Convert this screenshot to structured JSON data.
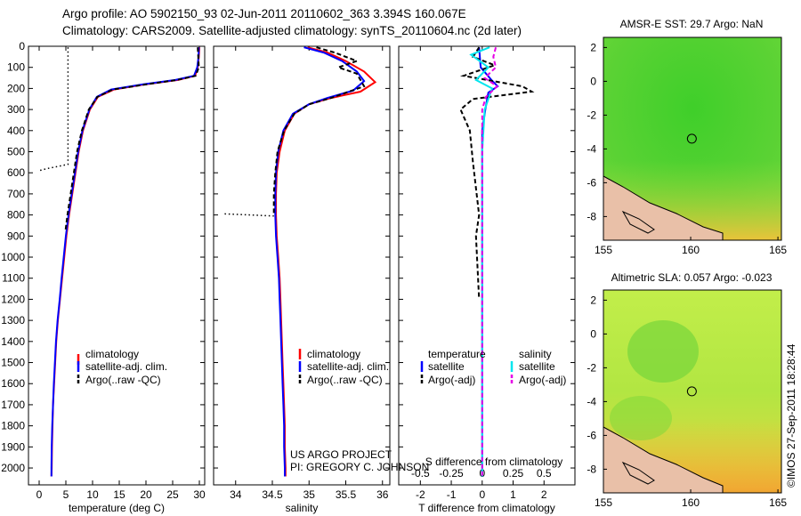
{
  "header": {
    "line1": "Argo profile: AO 5902150_93 02-Jun-2011 20110602_363 3.394S 160.067E",
    "line2": "Climatology: CARS2009. Satellite-adjusted climatology: synTS_20110604.nc (2d later)"
  },
  "watermark": "©IMOS 27-Sep-2011 18:28:44",
  "project": {
    "line1": "US ARGO PROJECT",
    "line2": "PI: GREGORY C. JOHNSON"
  },
  "colors": {
    "climatology": "#ff0000",
    "satellite": "#0000ff",
    "argo": "#000000",
    "sat_diff_S": "#00e5ee",
    "argo_adj_S": "#e600e6"
  },
  "chart_data": [
    {
      "type": "line",
      "id": "temperature",
      "xlabel": "temperature (deg C)",
      "ylabel": "",
      "xlim": [
        -2,
        31
      ],
      "ylim": [
        2080,
        0
      ],
      "y_reversed": true,
      "xticks": [
        0,
        5,
        10,
        15,
        20,
        25,
        30
      ],
      "yticks": [
        0,
        100,
        200,
        300,
        400,
        500,
        600,
        700,
        800,
        900,
        1000,
        1100,
        1200,
        1300,
        1400,
        1500,
        1600,
        1700,
        1800,
        1900,
        2000
      ],
      "legend": {
        "position": "bottom-center",
        "entries": [
          "climatology",
          "satellite-adj. clim.",
          "Argo(..raw -QC)"
        ]
      },
      "series": [
        {
          "name": "climatology",
          "points": [
            [
              30.0,
              5
            ],
            [
              29.9,
              50
            ],
            [
              29.7,
              100
            ],
            [
              29.2,
              140
            ],
            [
              26,
              160
            ],
            [
              20,
              180
            ],
            [
              14,
              205
            ],
            [
              11,
              240
            ],
            [
              9.5,
              300
            ],
            [
              8.2,
              400
            ],
            [
              7.4,
              500
            ],
            [
              6.8,
              600
            ],
            [
              6.2,
              700
            ],
            [
              5.6,
              800
            ],
            [
              5.1,
              900
            ],
            [
              4.7,
              1000
            ],
            [
              4.3,
              1100
            ],
            [
              3.9,
              1200
            ],
            [
              3.5,
              1300
            ],
            [
              3.2,
              1400
            ],
            [
              3.0,
              1500
            ],
            [
              2.8,
              1600
            ],
            [
              2.6,
              1700
            ],
            [
              2.5,
              1800
            ],
            [
              2.4,
              1900
            ],
            [
              2.35,
              2000
            ],
            [
              2.3,
              2040
            ]
          ]
        },
        {
          "name": "satellite-adj. clim.",
          "points": [
            [
              29.9,
              5
            ],
            [
              29.85,
              50
            ],
            [
              29.6,
              100
            ],
            [
              29.0,
              140
            ],
            [
              25.5,
              160
            ],
            [
              19.5,
              180
            ],
            [
              13.5,
              205
            ],
            [
              10.8,
              240
            ],
            [
              9.4,
              300
            ],
            [
              8.1,
              400
            ],
            [
              7.3,
              500
            ],
            [
              6.7,
              600
            ],
            [
              6.1,
              700
            ],
            [
              5.5,
              800
            ],
            [
              5.0,
              900
            ],
            [
              4.6,
              1000
            ],
            [
              4.2,
              1100
            ],
            [
              3.85,
              1200
            ],
            [
              3.45,
              1300
            ],
            [
              3.15,
              1400
            ],
            [
              2.95,
              1500
            ],
            [
              2.75,
              1600
            ],
            [
              2.6,
              1700
            ],
            [
              2.45,
              1800
            ],
            [
              2.35,
              1900
            ],
            [
              2.3,
              2000
            ],
            [
              2.3,
              2040
            ]
          ]
        },
        {
          "name": "Argo(..raw -QC)",
          "points": [
            [
              29.7,
              5
            ],
            [
              29.8,
              50
            ],
            [
              29.9,
              100
            ],
            [
              29.3,
              140
            ],
            [
              25.8,
              160
            ],
            [
              20.2,
              180
            ],
            [
              13.8,
              205
            ],
            [
              10.9,
              240
            ],
            [
              9.3,
              300
            ],
            [
              8.0,
              400
            ],
            [
              7.1,
              500
            ],
            [
              6.5,
              600
            ],
            [
              5.9,
              700
            ],
            [
              5.3,
              800
            ],
            [
              4.9,
              880
            ]
          ]
        },
        {
          "name": "raw (dotted)",
          "points": [
            [
              5.4,
              5
            ],
            [
              5.4,
              560
            ],
            [
              3.5,
              570
            ],
            [
              1.5,
              580
            ],
            [
              0,
              590
            ]
          ]
        }
      ]
    },
    {
      "type": "line",
      "id": "salinity",
      "xlabel": "salinity",
      "ylabel": "",
      "xlim": [
        33.7,
        36.1
      ],
      "ylim": [
        2080,
        0
      ],
      "y_reversed": true,
      "xticks": [
        34,
        34.5,
        35,
        35.5,
        36
      ],
      "legend": {
        "position": "bottom-right",
        "entries": [
          "climatology",
          "satellite-adj. clim.",
          "Argo(..raw -QC)"
        ]
      },
      "series": [
        {
          "name": "climatology",
          "points": [
            [
              34.98,
              5
            ],
            [
              35.25,
              30
            ],
            [
              35.5,
              70
            ],
            [
              35.75,
              120
            ],
            [
              35.9,
              170
            ],
            [
              35.7,
              215
            ],
            [
              35.3,
              245
            ],
            [
              35.0,
              275
            ],
            [
              34.8,
              320
            ],
            [
              34.67,
              400
            ],
            [
              34.6,
              500
            ],
            [
              34.56,
              600
            ],
            [
              34.55,
              700
            ],
            [
              34.55,
              800
            ],
            [
              34.56,
              900
            ],
            [
              34.58,
              1000
            ],
            [
              34.6,
              1100
            ],
            [
              34.61,
              1200
            ],
            [
              34.62,
              1300
            ],
            [
              34.63,
              1400
            ],
            [
              34.64,
              1500
            ],
            [
              34.65,
              1600
            ],
            [
              34.66,
              1700
            ],
            [
              34.67,
              1800
            ],
            [
              34.67,
              1900
            ],
            [
              34.68,
              2000
            ],
            [
              34.68,
              2040
            ]
          ]
        },
        {
          "name": "satellite-adj. clim.",
          "points": [
            [
              34.93,
              5
            ],
            [
              35.2,
              30
            ],
            [
              35.45,
              70
            ],
            [
              35.65,
              120
            ],
            [
              35.75,
              165
            ],
            [
              35.6,
              210
            ],
            [
              35.25,
              245
            ],
            [
              35.0,
              275
            ],
            [
              34.78,
              320
            ],
            [
              34.65,
              400
            ],
            [
              34.58,
              500
            ],
            [
              34.55,
              600
            ],
            [
              34.54,
              700
            ],
            [
              34.54,
              800
            ],
            [
              34.55,
              900
            ],
            [
              34.57,
              1000
            ],
            [
              34.59,
              1100
            ],
            [
              34.6,
              1200
            ],
            [
              34.61,
              1300
            ],
            [
              34.62,
              1400
            ],
            [
              34.63,
              1500
            ],
            [
              34.64,
              1600
            ],
            [
              34.65,
              1700
            ],
            [
              34.66,
              1800
            ],
            [
              34.66,
              1900
            ],
            [
              34.67,
              2000
            ],
            [
              34.67,
              2040
            ]
          ]
        },
        {
          "name": "Argo(..raw -QC)",
          "points": [
            [
              35.1,
              5
            ],
            [
              35.35,
              30
            ],
            [
              35.65,
              70
            ],
            [
              35.4,
              100
            ],
            [
              35.65,
              130
            ],
            [
              35.75,
              190
            ],
            [
              35.3,
              245
            ],
            [
              35.0,
              275
            ],
            [
              34.8,
              320
            ],
            [
              34.66,
              400
            ],
            [
              34.57,
              500
            ],
            [
              34.54,
              600
            ],
            [
              34.52,
              700
            ],
            [
              34.52,
              800
            ]
          ]
        },
        {
          "name": "raw (dotted)",
          "points": [
            [
              33.85,
              795
            ],
            [
              34.2,
              800
            ],
            [
              34.52,
              805
            ]
          ]
        }
      ]
    },
    {
      "type": "line",
      "id": "differences",
      "xlabel": "T difference from climatology",
      "xlabel2": "S difference from climatology",
      "xlim": [
        -2.7,
        3.0
      ],
      "ylim": [
        2080,
        0
      ],
      "y_reversed": true,
      "xticks": [
        -2,
        -1,
        0,
        1,
        2
      ],
      "xticks_S_values": [
        -0.5,
        -0.25,
        0,
        0.25,
        0.5
      ],
      "xticks_S_labels": [
        "-0.5",
        "-0.25",
        "0",
        "0.25",
        "0.5"
      ],
      "legend": {
        "position": "bottom-center",
        "group_titles": [
          "temperature",
          "salinity"
        ],
        "entries": [
          "satellite",
          "Argo(-adj)",
          "satellite",
          "Argo(-adj)"
        ]
      },
      "series": [
        {
          "name": "T satellite",
          "points": [
            [
              -0.1,
              5
            ],
            [
              -0.05,
              100
            ],
            [
              0.3,
              160
            ],
            [
              0.5,
              190
            ],
            [
              0.2,
              220
            ],
            [
              0.1,
              300
            ],
            [
              0,
              400
            ],
            [
              0,
              600
            ],
            [
              0,
              800
            ],
            [
              0,
              1000
            ],
            [
              0,
              1200
            ],
            [
              0,
              1400
            ],
            [
              0,
              1600
            ],
            [
              0,
              1800
            ],
            [
              0,
              2040
            ]
          ]
        },
        {
          "name": "T Argo(-adj)",
          "points": [
            [
              -0.1,
              5
            ],
            [
              -0.3,
              50
            ],
            [
              0.4,
              90
            ],
            [
              -0.6,
              140
            ],
            [
              1.3,
              190
            ],
            [
              1.6,
              215
            ],
            [
              -0.3,
              250
            ],
            [
              -0.7,
              300
            ],
            [
              -0.4,
              400
            ],
            [
              -0.3,
              550
            ],
            [
              -0.1,
              800
            ],
            [
              -0.2,
              900
            ],
            [
              -0.1,
              1200
            ]
          ]
        },
        {
          "name": "S satellite",
          "points": [
            [
              0.06,
              5
            ],
            [
              -0.09,
              40
            ],
            [
              0.05,
              100
            ],
            [
              -0.05,
              160
            ],
            [
              0.08,
              200
            ],
            [
              0.02,
              300
            ],
            [
              0,
              500
            ],
            [
              0,
              1000
            ],
            [
              0,
              1500
            ],
            [
              0,
              2040
            ]
          ]
        },
        {
          "name": "S Argo(-adj)",
          "points": [
            [
              0.11,
              5
            ],
            [
              0.09,
              50
            ],
            [
              0.11,
              100
            ],
            [
              0.02,
              150
            ],
            [
              0.12,
              190
            ],
            [
              0.03,
              240
            ],
            [
              0,
              300
            ],
            [
              0,
              500
            ],
            [
              0,
              1000
            ],
            [
              0,
              1500
            ],
            [
              0,
              2040
            ]
          ]
        }
      ]
    },
    {
      "type": "heatmap",
      "id": "sst_map",
      "title": "AMSR-E SST: 29.7 Argo: NaN",
      "xlim": [
        155,
        165.2
      ],
      "ylim": [
        -9.4,
        2.6
      ],
      "xticks": [
        155,
        160,
        165
      ],
      "yticks": [
        2,
        0,
        -2,
        -4,
        -6,
        -8
      ],
      "argo_position": {
        "lon": 160.067,
        "lat": -3.394
      }
    },
    {
      "type": "heatmap",
      "id": "sla_map",
      "title": "Altimetric SLA: 0.057 Argo: -0.023",
      "xlim": [
        155,
        165.2
      ],
      "ylim": [
        -9.4,
        2.6
      ],
      "xticks": [
        155,
        160,
        165
      ],
      "yticks": [
        2,
        0,
        -2,
        -4,
        -6,
        -8
      ],
      "argo_position": {
        "lon": 160.067,
        "lat": -3.394
      }
    }
  ]
}
